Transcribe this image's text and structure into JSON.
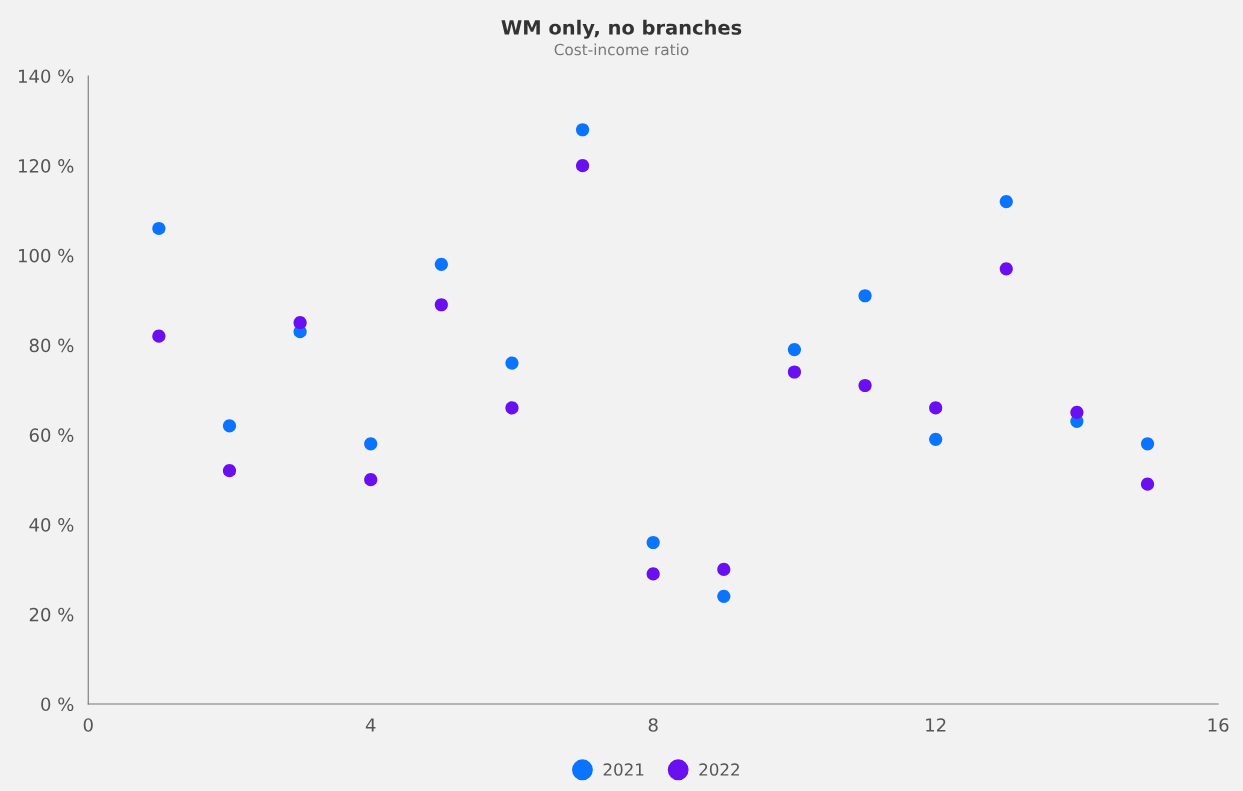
{
  "chart_data": {
    "type": "scatter",
    "title": "WM only, no branches",
    "subtitle": "Cost-income ratio",
    "x": [
      1,
      2,
      3,
      4,
      5,
      6,
      7,
      8,
      9,
      10,
      11,
      12,
      13,
      14,
      15
    ],
    "series": [
      {
        "name": "2021",
        "color": "#0a74ff",
        "values": [
          106,
          62,
          83,
          58,
          98,
          76,
          128,
          36,
          24,
          79,
          91,
          59,
          112,
          63,
          58
        ]
      },
      {
        "name": "2022",
        "color": "#6a0ff0",
        "values": [
          82,
          52,
          85,
          50,
          89,
          66,
          120,
          29,
          30,
          74,
          71,
          66,
          97,
          65,
          49
        ]
      }
    ],
    "xlim": [
      0,
      16
    ],
    "xticks": [
      0,
      4,
      8,
      12,
      16
    ],
    "ylim": [
      0,
      140
    ],
    "yticks": [
      {
        "value": 0,
        "label": "0 %"
      },
      {
        "value": 20,
        "label": "20 %"
      },
      {
        "value": 40,
        "label": "40 %"
      },
      {
        "value": 60,
        "label": "60 %"
      },
      {
        "value": 80,
        "label": "80 %"
      },
      {
        "value": 100,
        "label": "100 %"
      },
      {
        "value": 120,
        "label": "120 %"
      },
      {
        "value": 140,
        "label": "140 %"
      }
    ],
    "grid": false,
    "legend": "bottom",
    "marker": "circle"
  }
}
